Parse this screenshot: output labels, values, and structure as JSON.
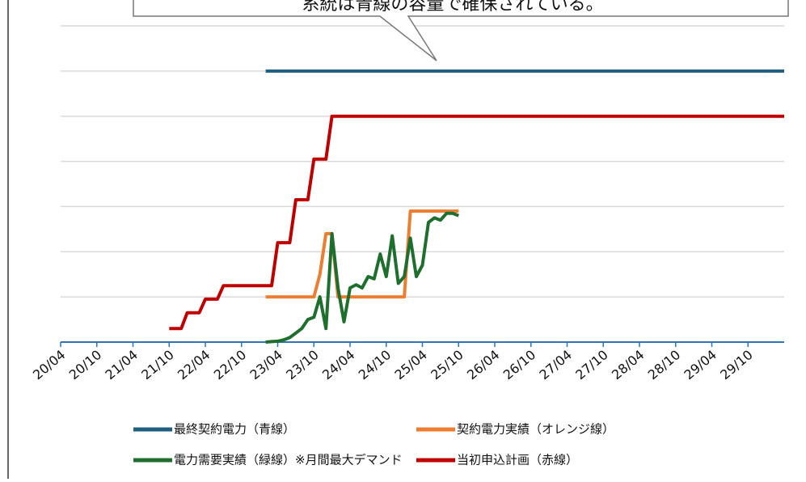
{
  "chart_data": {
    "type": "line",
    "annotation": "系統は青線の容量で確保されている。",
    "xlim": [
      "20/04",
      "30/04"
    ],
    "xticks": [
      "20/04",
      "20/10",
      "21/04",
      "21/10",
      "22/04",
      "22/10",
      "23/04",
      "23/10",
      "24/04",
      "24/10",
      "25/04",
      "25/10",
      "26/04",
      "26/10",
      "27/04",
      "27/10",
      "28/04",
      "28/10",
      "29/04",
      "29/10"
    ],
    "ylim": [
      0,
      7
    ],
    "yticks": [
      1,
      2,
      3,
      4,
      5,
      6,
      7
    ],
    "grid": true,
    "axis_color": "#2e75b6",
    "series": [
      {
        "name": "最終契約電力（青線）",
        "color": "#1f5f80",
        "x": [
          "23/02",
          "30/04"
        ],
        "values": [
          6.0,
          6.0
        ]
      },
      {
        "name": "契約電力実績（オレンジ線）",
        "color": "#ed7d31",
        "x": [
          "23/02",
          "23/10",
          "23/11",
          "23/12",
          "24/01",
          "24/02",
          "25/01",
          "25/02",
          "25/10"
        ],
        "values": [
          1.0,
          1.0,
          1.5,
          2.4,
          2.4,
          1.0,
          1.0,
          2.9,
          2.9
        ]
      },
      {
        "name": "電力需要実績（緑線）※月間最大デマンド",
        "color": "#1e6e2e",
        "x": [
          "23/02",
          "23/03",
          "23/04",
          "23/05",
          "23/06",
          "23/07",
          "23/08",
          "23/09",
          "23/10",
          "23/11",
          "23/12",
          "24/01",
          "24/02",
          "24/03",
          "24/04",
          "24/05",
          "24/06",
          "24/07",
          "24/08",
          "24/09",
          "24/10",
          "24/11",
          "24/12",
          "25/01",
          "25/02",
          "25/03",
          "25/04",
          "25/05",
          "25/06",
          "25/07",
          "25/08",
          "25/09",
          "25/10"
        ],
        "values": [
          0,
          0.01,
          0.02,
          0.05,
          0.1,
          0.2,
          0.3,
          0.5,
          0.55,
          1.0,
          0.3,
          2.4,
          1.2,
          0.45,
          1.2,
          1.27,
          1.2,
          1.45,
          1.4,
          1.95,
          1.45,
          2.35,
          1.3,
          1.45,
          2.3,
          1.45,
          1.7,
          2.65,
          2.75,
          2.7,
          2.85,
          2.85,
          2.8
        ]
      },
      {
        "name": "当初申込計画（赤線）",
        "color": "#c00000",
        "x": [
          "21/10",
          "21/12",
          "22/01",
          "22/03",
          "22/04",
          "22/06",
          "22/07",
          "23/03",
          "23/04",
          "23/06",
          "23/07",
          "23/09",
          "23/10",
          "23/12",
          "24/01",
          "30/04"
        ],
        "values": [
          0.3,
          0.3,
          0.65,
          0.65,
          0.95,
          0.95,
          1.25,
          1.25,
          2.2,
          2.2,
          3.15,
          3.15,
          4.05,
          4.05,
          5.0,
          5.0
        ]
      }
    ]
  }
}
